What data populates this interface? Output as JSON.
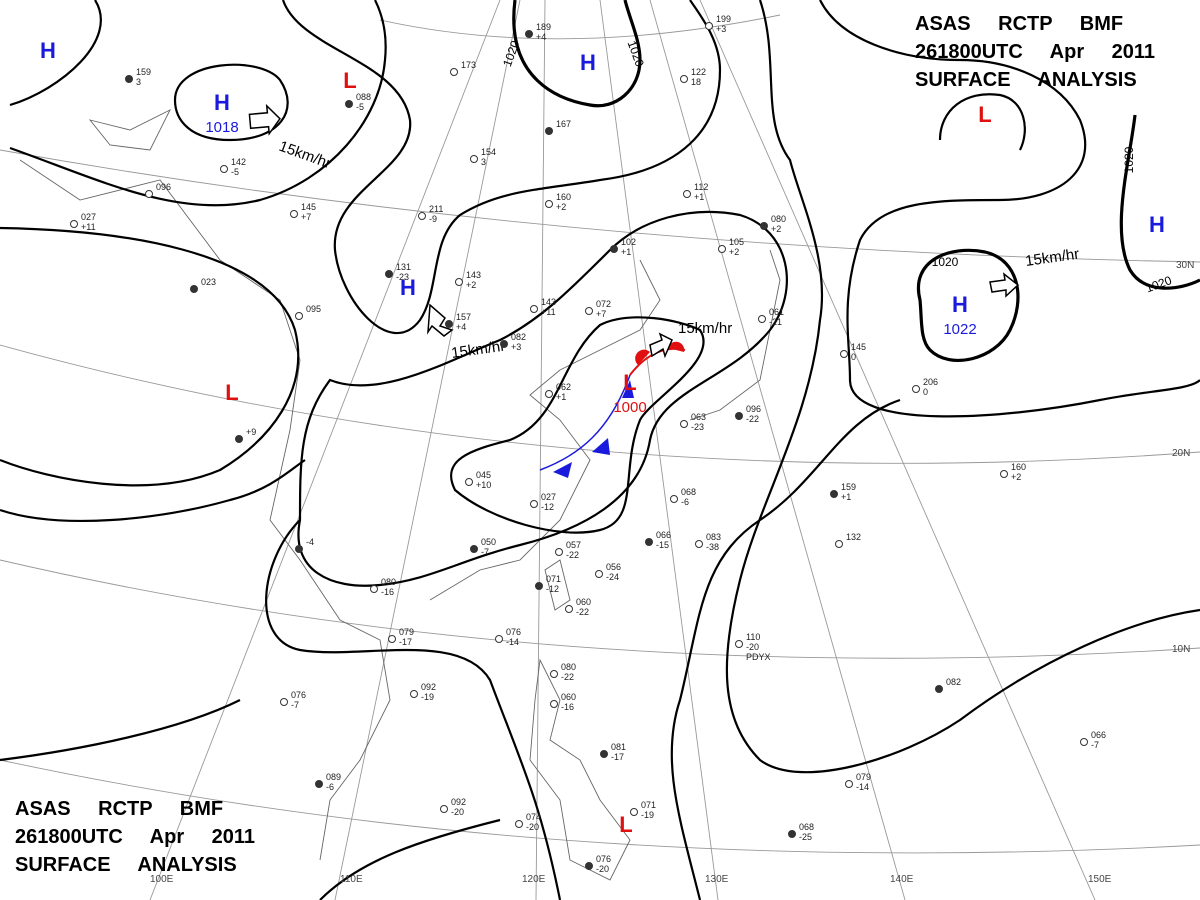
{
  "title_top_right": [
    "ASAS RCTP BMF",
    "261800UTC Apr 2011",
    "SURFACE ANALYSIS"
  ],
  "title_bottom_left": [
    "ASAS RCTP BMF",
    "261800UTC Apr 2011",
    "SURFACE ANALYSIS"
  ],
  "pressure_centers": [
    {
      "label": "H",
      "color": "#1a1adc"
    },
    {
      "label": "H",
      "value": "1018",
      "color": "#1a1adc"
    },
    {
      "label": "L",
      "color": "#e01010"
    },
    {
      "label": "H",
      "color": "#1a1adc"
    },
    {
      "label": "H",
      "color": "#1a1adc"
    },
    {
      "label": "L",
      "color": "#e01010"
    },
    {
      "label": "L",
      "value": "1000",
      "color": "#e01010"
    },
    {
      "label": "L",
      "color": "#e01010"
    },
    {
      "label": "H",
      "value": "1022",
      "color": "#1a1adc"
    },
    {
      "label": "H",
      "color": "#1a1adc"
    },
    {
      "label": "L",
      "color": "#e01010"
    }
  ],
  "isobar_labels": [
    "1020",
    "1020",
    "1020",
    "1020",
    "1020"
  ],
  "motion_labels": [
    "15km/hr",
    "15km/hr",
    "15km/hr",
    "15km/hr"
  ],
  "longitude_labels": [
    "100E",
    "110E",
    "120E",
    "130E",
    "140E",
    "150E"
  ],
  "latitude_labels": [
    "30N",
    "20N",
    "10N"
  ],
  "stations": [
    [
      "159",
      "3"
    ],
    [
      "142",
      "-5"
    ],
    [
      "145",
      "+7"
    ],
    [
      "088",
      "-5"
    ],
    [
      "173"
    ],
    [
      "154",
      "3"
    ],
    [
      "189",
      "+4"
    ],
    [
      "199",
      "+3"
    ],
    [
      "122",
      "18"
    ],
    [
      "167"
    ],
    [
      "160",
      "+2"
    ],
    [
      "211",
      "-9"
    ],
    [
      "131",
      "-23"
    ],
    [
      "143",
      "+2"
    ],
    [
      "095"
    ],
    [
      "157",
      "+4"
    ],
    [
      "143",
      "+11"
    ],
    [
      "072",
      "+7"
    ],
    [
      "102",
      "+1"
    ],
    [
      "112",
      "+1"
    ],
    [
      "105",
      "+2"
    ],
    [
      "080",
      "+2"
    ],
    [
      "061",
      "-21"
    ],
    [
      "145",
      "0"
    ],
    [
      "159",
      "+1"
    ],
    [
      "160",
      "+2"
    ],
    [
      "132"
    ],
    [
      "082",
      "+3"
    ],
    [
      "045",
      "+10"
    ],
    [
      "027",
      "-12"
    ],
    [
      "050",
      "-7"
    ],
    [
      "057",
      "-22"
    ],
    [
      "056",
      "-24"
    ],
    [
      "071",
      "-12"
    ],
    [
      "060",
      "-22"
    ],
    [
      "068",
      "-6"
    ],
    [
      "066",
      "-15"
    ],
    [
      "083",
      "-38"
    ],
    [
      "110",
      "-20",
      "PDYX"
    ],
    [
      "082"
    ],
    [
      "066",
      "-7"
    ],
    [
      "079",
      "-14"
    ],
    [
      "068",
      "-25"
    ],
    [
      "079",
      "-17"
    ],
    [
      "080",
      "-16"
    ],
    [
      "-4"
    ],
    [
      "076",
      "-7"
    ],
    [
      "092",
      "-19"
    ],
    [
      "089",
      "-6"
    ],
    [
      "092",
      "-20"
    ],
    [
      "074",
      "-20"
    ],
    [
      "076",
      "-20"
    ],
    [
      "080",
      "-22"
    ],
    [
      "060",
      "-16"
    ],
    [
      "081",
      "-17"
    ],
    [
      "071",
      "-19"
    ],
    [
      "076",
      "-14"
    ],
    [
      "+9"
    ],
    [
      "027",
      "+11"
    ],
    [
      "096"
    ],
    [
      "023"
    ],
    [
      "206",
      "0"
    ],
    [
      "063",
      "-23"
    ],
    [
      "096",
      "-22"
    ],
    [
      "062",
      "+1"
    ]
  ]
}
